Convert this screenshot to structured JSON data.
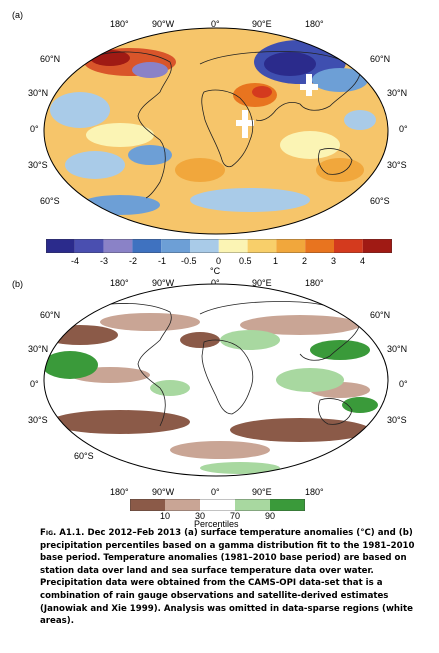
{
  "panel_a": {
    "label": "(a)",
    "lon_ticks": [
      "180°",
      "90°W",
      "0°",
      "90°E",
      "180°"
    ],
    "lat_left": [
      "60°N",
      "30°N",
      "0°",
      "30°S",
      "60°S"
    ],
    "lat_right": [
      "60°N",
      "30°N",
      "0°",
      "30°S",
      "60°S"
    ],
    "colorbar": {
      "labels": [
        "-4",
        "-3",
        "-2",
        "-1",
        "-0.5",
        "0",
        "0.5",
        "1",
        "2",
        "3",
        "4"
      ],
      "unit": "°C",
      "colors": [
        "#2b2b8c",
        "#4a4fb0",
        "#8a82c7",
        "#3f72c0",
        "#6d9fd6",
        "#a9cbe8",
        "#fbf4b4",
        "#f8cf6a",
        "#f1a73c",
        "#e8741f",
        "#d43a1e",
        "#a01a14"
      ]
    }
  },
  "panel_b": {
    "label": "(b)",
    "lon_ticks_top": [
      "180°",
      "90°W",
      "0°",
      "90°E",
      "180°"
    ],
    "lon_ticks_bottom": [
      "180°",
      "90°W",
      "0°",
      "90°E",
      "180°"
    ],
    "lat_left": [
      "60°N",
      "30°N",
      "0°",
      "30°S",
      "60°S"
    ],
    "lat_right": [
      "60°N",
      "30°N",
      "0°",
      "30°S"
    ],
    "colorbar": {
      "labels": [
        "10",
        "30",
        "70",
        "90"
      ],
      "unit": "Percentiles",
      "colors": [
        "#8b5a48",
        "#c9a595",
        "#ffffff",
        "#a8d8a0",
        "#3a9a3a"
      ]
    }
  },
  "caption": {
    "fig_label": "Fig. A1.1.",
    "text": "Dec 2012–Feb 2013 (a) surface temperature anomalies (°C) and (b) precipitation percentiles based on a gamma distribution fit to the 1981–2010 base period. Temperature anomalies (1981–2010 base period) are based on station data over land and sea surface temperature data over water. Precipitation data were obtained from the CAMS-OPI data-set that is a combination of rain gauge observations and satellite-derived estimates (Janowiak and Xie 1999). Analysis was omitted in data-sparse regions (white areas)."
  }
}
